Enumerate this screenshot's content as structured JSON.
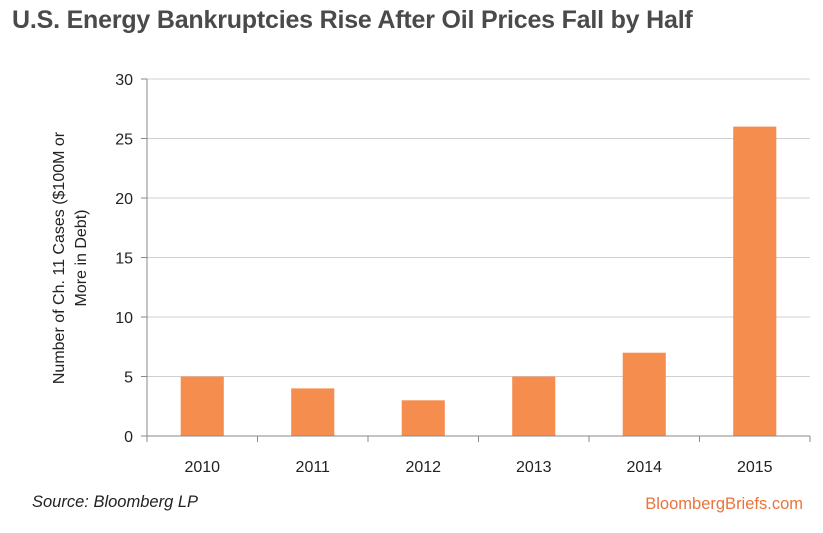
{
  "chart_data": {
    "type": "bar",
    "title": "U.S. Energy Bankruptcies Rise After Oil Prices Fall by Half",
    "xlabel": "",
    "ylabel": [
      "Number of Ch. 11 Cases ($100M or",
      "More in Debt)"
    ],
    "categories": [
      "2010",
      "2011",
      "2012",
      "2013",
      "2014",
      "2015"
    ],
    "values": [
      5,
      4,
      3,
      5,
      7,
      26
    ],
    "ylim": [
      0,
      30
    ],
    "yticks": [
      "0",
      "5",
      "10",
      "15",
      "20",
      "25",
      "30"
    ],
    "grid": true,
    "bar_color": "#f58d4e",
    "grid_color": "#d0d0d0"
  },
  "footer": {
    "source": "Source: Bloomberg LP",
    "brand": "BloombergBriefs.com",
    "brand_color": "#e8743b"
  }
}
